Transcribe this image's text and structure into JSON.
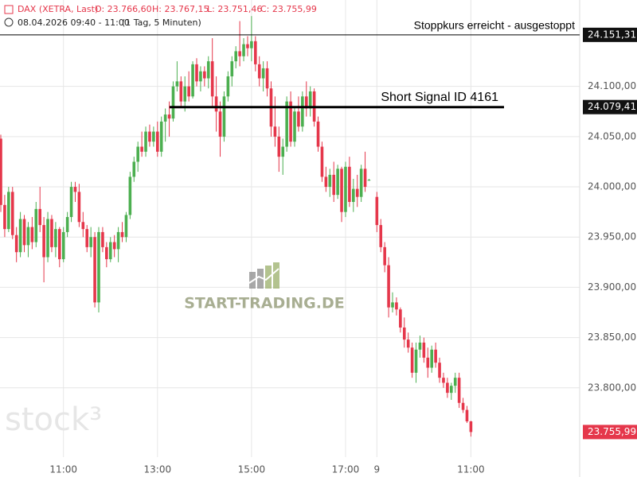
{
  "chart_data": {
    "type": "candlestick",
    "header": {
      "symbol": "DAX (XETRA, Last)",
      "open": "O: 23.766,60",
      "high": "H: 23.767,15",
      "low": "L: 23.751,46",
      "close": "C: 23.755,99",
      "range": "08.04.2026 09:40 - 11:00",
      "interval": "(1 Tag, 5 Minuten)"
    },
    "watermarks": [
      "START-TRADING.DE",
      "stock³"
    ],
    "up_color": "#4caf50",
    "down_color": "#e5374b",
    "grid": true,
    "ylim": [
      23731,
      24186
    ],
    "yticks": [
      {
        "value": 24100,
        "label": "24.100,00"
      },
      {
        "value": 24050,
        "label": "24.050,00"
      },
      {
        "value": 24000,
        "label": "24.000,00"
      },
      {
        "value": 23950,
        "label": "23.950,00"
      },
      {
        "value": 23900,
        "label": "23.900,00"
      },
      {
        "value": 23850,
        "label": "23.850,00"
      },
      {
        "value": 23800,
        "label": "23.800,00"
      }
    ],
    "lines": [
      {
        "value": 24151.31,
        "label": "24.151,31",
        "text": "Stoppkurs erreicht - ausgestoppt"
      },
      {
        "value": 24079.41,
        "label": "24.079,41",
        "text": "Short Signal  ID 4161"
      }
    ],
    "last_price": {
      "value": 23755.99,
      "label": "23.755,99"
    },
    "categories": [
      null,
      null,
      null,
      null,
      null,
      null,
      null,
      null,
      null,
      null,
      null,
      null,
      null,
      null,
      null,
      null,
      "11:00",
      null,
      null,
      null,
      null,
      null,
      null,
      null,
      null,
      null,
      null,
      null,
      null,
      null,
      null,
      null,
      null,
      null,
      null,
      null,
      null,
      null,
      null,
      null,
      "13:00",
      null,
      null,
      null,
      null,
      null,
      null,
      null,
      null,
      null,
      null,
      null,
      null,
      null,
      null,
      null,
      null,
      null,
      null,
      null,
      null,
      null,
      null,
      null,
      "15:00",
      null,
      null,
      null,
      null,
      null,
      null,
      null,
      null,
      null,
      null,
      null,
      null,
      null,
      null,
      null,
      null,
      null,
      null,
      null,
      null,
      null,
      null,
      null,
      "17:00",
      null,
      null,
      null,
      null,
      null,
      null,
      null,
      "9",
      null,
      null,
      null,
      null,
      null,
      null,
      null,
      null,
      null,
      null,
      null,
      null,
      null,
      null,
      null,
      null,
      null,
      null,
      null,
      null,
      null,
      null,
      null,
      "11:00"
    ],
    "open": [
      24048,
      23982,
      23958,
      23995,
      23952,
      23935,
      23968,
      23942,
      23960,
      23945,
      23978,
      23962,
      23930,
      23968,
      23940,
      23958,
      23928,
      23955,
      23970,
      24000,
      23995,
      23965,
      23958,
      23940,
      23950,
      23885,
      23955,
      23940,
      23928,
      23945,
      23938,
      23955,
      23950,
      23972,
      24010,
      24025,
      24040,
      24035,
      24055,
      24045,
      24055,
      24035,
      24065,
      24072,
      24068,
      24100,
      24105,
      24085,
      24100,
      24090,
      24122,
      24105,
      24115,
      24108,
      24125,
      24090,
      24075,
      24050,
      24090,
      24110,
      24125,
      24135,
      24130,
      24142,
      24138,
      24145,
      24122,
      24108,
      24118,
      24098,
      24060,
      24050,
      24030,
      24040,
      24085,
      24045,
      24075,
      24060,
      24090,
      24078,
      24095,
      24065,
      24040,
      24010,
      24000,
      24012,
      23992,
      24018,
      23975,
      24020,
      23985,
      23998,
      23990,
      24018,
      24007,
      null,
      23990,
      23962,
      23940,
      23922,
      23880,
      23885,
      23878,
      23860,
      23848,
      23840,
      23815,
      23838,
      23845,
      23830,
      23820,
      23838,
      23825,
      23810,
      23805,
      23795,
      23802,
      23810,
      23785,
      23778,
      23766.6
    ],
    "high": [
      24052,
      23992,
      24000,
      24000,
      23960,
      23975,
      23972,
      23965,
      23970,
      23985,
      24000,
      23970,
      23975,
      23972,
      23965,
      23960,
      23960,
      23975,
      24005,
      24005,
      24003,
      23975,
      23962,
      23960,
      23955,
      23960,
      23960,
      23945,
      23950,
      23952,
      23960,
      23965,
      23975,
      24015,
      24030,
      24045,
      24055,
      24060,
      24062,
      24060,
      24065,
      24070,
      24078,
      24085,
      24105,
      24125,
      24110,
      24110,
      24115,
      24125,
      24128,
      24120,
      24120,
      24130,
      24148,
      24110,
      24085,
      24095,
      24115,
      24130,
      24140,
      24165,
      24148,
      24150,
      24170,
      24150,
      24130,
      24125,
      24125,
      24105,
      24090,
      24060,
      24048,
      24090,
      24095,
      24080,
      24090,
      24095,
      24105,
      24100,
      24098,
      24070,
      24045,
      24020,
      24018,
      24025,
      24022,
      24020,
      24025,
      24030,
      24008,
      24012,
      24022,
      24035,
      24008,
      null,
      23995,
      23968,
      23945,
      23930,
      23895,
      23890,
      23880,
      23870,
      23855,
      23845,
      23845,
      23852,
      23850,
      23840,
      23842,
      23845,
      23830,
      23815,
      23810,
      23805,
      23815,
      23815,
      23790,
      23782,
      23767.15
    ],
    "low": [
      23975,
      23950,
      23955,
      23948,
      23925,
      23930,
      23935,
      23930,
      23938,
      23940,
      23955,
      23905,
      23925,
      23935,
      23930,
      23920,
      23925,
      23950,
      23965,
      23985,
      23960,
      23950,
      23935,
      23930,
      23880,
      23875,
      23935,
      23920,
      23925,
      23930,
      23925,
      23945,
      23945,
      23968,
      24005,
      24015,
      24030,
      24030,
      24040,
      24040,
      24030,
      24030,
      24045,
      24050,
      24065,
      24095,
      24080,
      24075,
      24085,
      24088,
      24100,
      24095,
      24100,
      24098,
      24080,
      24055,
      24030,
      24045,
      24085,
      24100,
      24118,
      24120,
      24125,
      24130,
      24125,
      24115,
      24100,
      24095,
      24090,
      24050,
      24040,
      24015,
      24012,
      24035,
      24040,
      24040,
      24055,
      24055,
      24070,
      24070,
      24060,
      24035,
      24005,
      23995,
      23990,
      23985,
      23988,
      23965,
      23970,
      23980,
      23975,
      23980,
      23985,
      23995,
      24006,
      null,
      23955,
      23935,
      23915,
      23870,
      23875,
      23872,
      23855,
      23840,
      23835,
      23810,
      23805,
      23830,
      23825,
      23810,
      23815,
      23820,
      23805,
      23800,
      23790,
      23788,
      23795,
      23780,
      23775,
      23765,
      23751.46
    ],
    "close": [
      23982,
      23958,
      23995,
      23952,
      23935,
      23968,
      23942,
      23960,
      23945,
      23978,
      23962,
      23930,
      23968,
      23940,
      23958,
      23928,
      23955,
      23970,
      24000,
      23995,
      23965,
      23958,
      23940,
      23950,
      23885,
      23955,
      23940,
      23928,
      23945,
      23938,
      23955,
      23950,
      23972,
      24010,
      24025,
      24040,
      24035,
      24055,
      24045,
      24055,
      24035,
      24065,
      24072,
      24068,
      24100,
      24105,
      24085,
      24100,
      24090,
      24122,
      24105,
      24115,
      24108,
      24125,
      24090,
      24075,
      24050,
      24090,
      24110,
      24125,
      24135,
      24130,
      24142,
      24138,
      24145,
      24122,
      24108,
      24118,
      24098,
      24060,
      24050,
      24030,
      24040,
      24085,
      24045,
      24075,
      24060,
      24090,
      24078,
      24095,
      24065,
      24040,
      24010,
      24000,
      24012,
      23992,
      24018,
      23975,
      24020,
      23985,
      23998,
      23990,
      24018,
      24000,
      24007,
      null,
      23962,
      23940,
      23922,
      23880,
      23885,
      23878,
      23860,
      23848,
      23840,
      23815,
      23838,
      23845,
      23830,
      23820,
      23838,
      23825,
      23810,
      23805,
      23795,
      23802,
      23810,
      23785,
      23778,
      23766.6,
      23755.99
    ]
  }
}
